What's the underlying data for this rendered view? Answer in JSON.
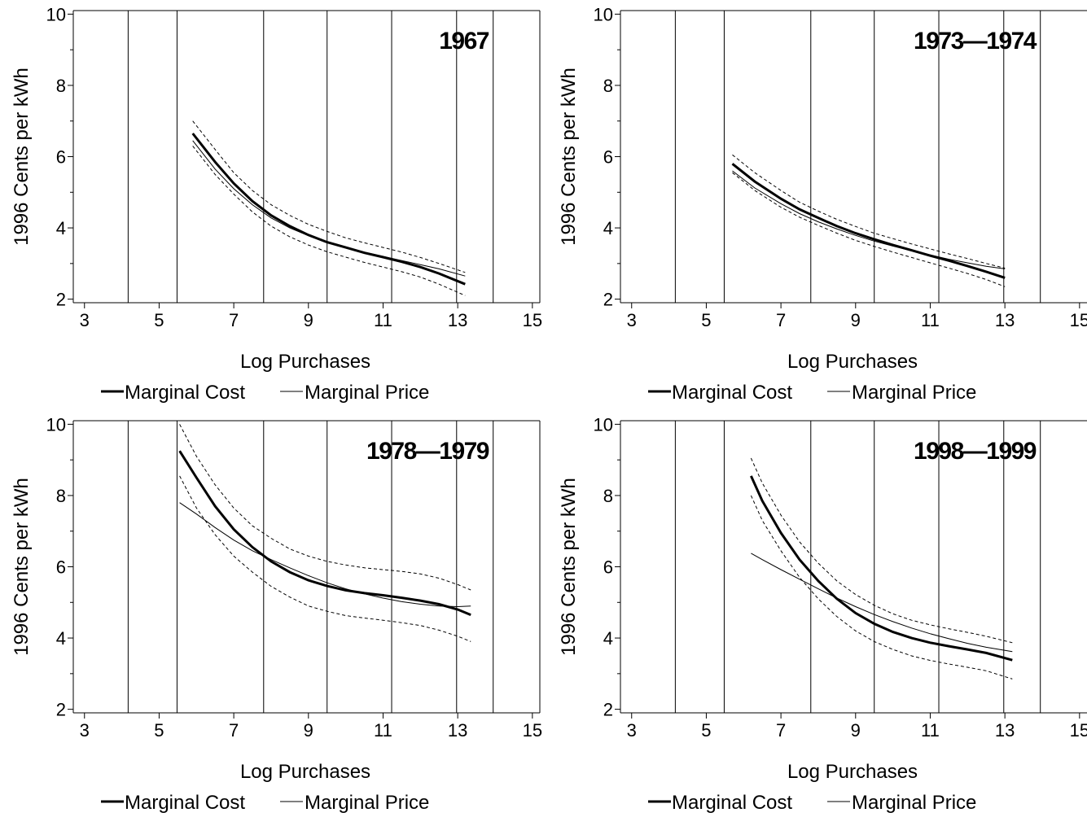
{
  "legend": {
    "cost_label": "Marginal Cost",
    "price_label": "Marginal Price"
  },
  "styles": {
    "line_color": "#000000",
    "background": "#ffffff"
  },
  "chart_data": [
    {
      "type": "line",
      "title": "1967",
      "xlabel": "Log Purchases",
      "ylabel": "1996 Cents per kWh",
      "xlim": [
        2.7,
        15.2
      ],
      "ylim": [
        1.9,
        10.1
      ],
      "xticks": [
        3,
        5,
        7,
        9,
        11,
        13,
        15
      ],
      "yticks": [
        2,
        4,
        6,
        8,
        10
      ],
      "yminor": [
        3,
        5,
        7,
        9
      ],
      "vlines": [
        4.17,
        5.48,
        7.8,
        9.5,
        11.23,
        12.97,
        13.95
      ],
      "grid": false,
      "legend_position": "bottom",
      "series": [
        {
          "name": "Marginal Cost",
          "role": "estimate",
          "x": [
            5.9,
            6.5,
            7.0,
            7.5,
            8.0,
            8.5,
            9.0,
            9.5,
            10.0,
            10.5,
            11.0,
            11.5,
            12.0,
            12.5,
            13.2
          ],
          "y": [
            6.65,
            5.85,
            5.25,
            4.75,
            4.35,
            4.05,
            3.8,
            3.6,
            3.45,
            3.3,
            3.18,
            3.05,
            2.9,
            2.72,
            2.42
          ]
        },
        {
          "name": "Marginal Cost upper",
          "role": "ci",
          "x": [
            5.9,
            6.5,
            7.0,
            7.5,
            8.0,
            8.5,
            9.0,
            9.5,
            10.0,
            10.5,
            11.0,
            11.5,
            12.0,
            12.5,
            13.2
          ],
          "y": [
            7.0,
            6.2,
            5.55,
            5.05,
            4.65,
            4.35,
            4.1,
            3.9,
            3.72,
            3.58,
            3.45,
            3.32,
            3.17,
            3.0,
            2.75
          ]
        },
        {
          "name": "Marginal Cost lower",
          "role": "ci",
          "x": [
            5.9,
            6.5,
            7.0,
            7.5,
            8.0,
            8.5,
            9.0,
            9.5,
            10.0,
            10.5,
            11.0,
            11.5,
            12.0,
            12.5,
            13.2
          ],
          "y": [
            6.3,
            5.5,
            4.95,
            4.45,
            4.05,
            3.75,
            3.52,
            3.33,
            3.18,
            3.03,
            2.9,
            2.77,
            2.62,
            2.42,
            2.1
          ]
        },
        {
          "name": "Marginal Price",
          "role": "price",
          "x": [
            5.9,
            6.5,
            7.0,
            7.5,
            8.0,
            8.5,
            9.0,
            9.5,
            10.0,
            10.5,
            11.0,
            11.5,
            12.0,
            12.5,
            13.2
          ],
          "y": [
            6.45,
            5.65,
            5.1,
            4.65,
            4.28,
            4.0,
            3.78,
            3.6,
            3.45,
            3.32,
            3.2,
            3.08,
            2.97,
            2.85,
            2.65
          ]
        }
      ]
    },
    {
      "type": "line",
      "title": "1973—1974",
      "xlabel": "Log Purchases",
      "ylabel": "1996 Cents per kWh",
      "xlim": [
        2.7,
        15.2
      ],
      "ylim": [
        1.9,
        10.1
      ],
      "xticks": [
        3,
        5,
        7,
        9,
        11,
        13,
        15
      ],
      "yticks": [
        2,
        4,
        6,
        8,
        10
      ],
      "yminor": [
        3,
        5,
        7,
        9
      ],
      "vlines": [
        4.17,
        5.48,
        7.8,
        9.5,
        11.23,
        12.97,
        13.95
      ],
      "grid": false,
      "legend_position": "bottom",
      "series": [
        {
          "name": "Marginal Cost",
          "role": "estimate",
          "x": [
            5.7,
            6.3,
            7.0,
            7.5,
            8.0,
            8.5,
            9.0,
            9.5,
            10.0,
            10.5,
            11.0,
            11.5,
            12.0,
            12.5,
            13.0
          ],
          "y": [
            5.8,
            5.3,
            4.82,
            4.52,
            4.28,
            4.05,
            3.85,
            3.68,
            3.52,
            3.37,
            3.22,
            3.08,
            2.93,
            2.77,
            2.6
          ]
        },
        {
          "name": "Marginal Cost upper",
          "role": "ci",
          "x": [
            5.7,
            6.3,
            7.0,
            7.5,
            8.0,
            8.5,
            9.0,
            9.5,
            10.0,
            10.5,
            11.0,
            11.5,
            12.0,
            12.5,
            13.0
          ],
          "y": [
            6.05,
            5.55,
            5.05,
            4.72,
            4.47,
            4.24,
            4.04,
            3.85,
            3.7,
            3.55,
            3.41,
            3.27,
            3.14,
            3.0,
            2.87
          ]
        },
        {
          "name": "Marginal Cost lower",
          "role": "ci",
          "x": [
            5.7,
            6.3,
            7.0,
            7.5,
            8.0,
            8.5,
            9.0,
            9.5,
            10.0,
            10.5,
            11.0,
            11.5,
            12.0,
            12.5,
            13.0
          ],
          "y": [
            5.55,
            5.05,
            4.58,
            4.3,
            4.07,
            3.85,
            3.65,
            3.48,
            3.32,
            3.17,
            3.02,
            2.87,
            2.72,
            2.55,
            2.35
          ]
        },
        {
          "name": "Marginal Price",
          "role": "price",
          "x": [
            5.7,
            6.3,
            7.0,
            7.5,
            8.0,
            8.5,
            9.0,
            9.5,
            10.0,
            10.5,
            11.0,
            11.5,
            12.0,
            12.5,
            13.0
          ],
          "y": [
            5.6,
            5.12,
            4.68,
            4.4,
            4.17,
            3.97,
            3.79,
            3.63,
            3.49,
            3.36,
            3.24,
            3.12,
            3.02,
            2.92,
            2.85
          ]
        }
      ]
    },
    {
      "type": "line",
      "title": "1978—1979",
      "xlabel": "Log Purchases",
      "ylabel": "1996 Cents per kWh",
      "xlim": [
        2.7,
        15.2
      ],
      "ylim": [
        1.9,
        10.1
      ],
      "xticks": [
        3,
        5,
        7,
        9,
        11,
        13,
        15
      ],
      "yticks": [
        2,
        4,
        6,
        8,
        10
      ],
      "yminor": [
        3,
        5,
        7,
        9
      ],
      "vlines": [
        4.17,
        5.48,
        7.8,
        9.5,
        11.23,
        12.97,
        13.95
      ],
      "grid": false,
      "legend_position": "bottom",
      "series": [
        {
          "name": "Marginal Cost",
          "role": "estimate",
          "x": [
            5.55,
            6.0,
            6.5,
            7.0,
            7.5,
            8.0,
            8.5,
            9.0,
            9.5,
            10.0,
            10.5,
            11.0,
            11.5,
            12.0,
            12.5,
            13.0,
            13.35
          ],
          "y": [
            9.25,
            8.5,
            7.7,
            7.05,
            6.55,
            6.15,
            5.85,
            5.62,
            5.46,
            5.34,
            5.26,
            5.2,
            5.13,
            5.05,
            4.95,
            4.8,
            4.65
          ]
        },
        {
          "name": "Marginal Cost upper",
          "role": "ci",
          "x": [
            5.55,
            6.0,
            6.5,
            7.0,
            7.5,
            8.0,
            8.5,
            9.0,
            9.5,
            10.0,
            10.5,
            11.0,
            11.5,
            12.0,
            12.5,
            13.0,
            13.35
          ],
          "y": [
            10.0,
            9.1,
            8.3,
            7.65,
            7.15,
            6.8,
            6.5,
            6.3,
            6.15,
            6.05,
            5.97,
            5.92,
            5.87,
            5.8,
            5.68,
            5.5,
            5.35
          ]
        },
        {
          "name": "Marginal Cost lower",
          "role": "ci",
          "x": [
            5.55,
            6.0,
            6.5,
            7.0,
            7.5,
            8.0,
            8.5,
            9.0,
            9.5,
            10.0,
            10.5,
            11.0,
            11.5,
            12.0,
            12.5,
            13.0,
            13.35
          ],
          "y": [
            8.55,
            7.65,
            6.9,
            6.3,
            5.85,
            5.45,
            5.15,
            4.9,
            4.75,
            4.63,
            4.56,
            4.5,
            4.43,
            4.35,
            4.22,
            4.05,
            3.9
          ]
        },
        {
          "name": "Marginal Price",
          "role": "price",
          "x": [
            5.55,
            6.0,
            6.5,
            7.0,
            7.5,
            8.0,
            8.5,
            9.0,
            9.5,
            10.0,
            10.5,
            11.0,
            11.5,
            12.0,
            12.5,
            13.0,
            13.35
          ],
          "y": [
            7.8,
            7.48,
            7.1,
            6.75,
            6.45,
            6.2,
            5.97,
            5.75,
            5.55,
            5.38,
            5.24,
            5.12,
            5.02,
            4.95,
            4.9,
            4.88,
            4.9
          ]
        }
      ]
    },
    {
      "type": "line",
      "title": "1998—1999",
      "xlabel": "Log Purchases",
      "ylabel": "1996 Cents per kWh",
      "xlim": [
        2.7,
        15.2
      ],
      "ylim": [
        1.9,
        10.1
      ],
      "xticks": [
        3,
        5,
        7,
        9,
        11,
        13,
        15
      ],
      "yticks": [
        2,
        4,
        6,
        8,
        10
      ],
      "yminor": [
        3,
        5,
        7,
        9
      ],
      "vlines": [
        4.17,
        5.48,
        7.8,
        9.5,
        11.23,
        12.97,
        13.95
      ],
      "grid": false,
      "legend_position": "bottom",
      "series": [
        {
          "name": "Marginal Cost",
          "role": "estimate",
          "x": [
            6.2,
            6.5,
            7.0,
            7.5,
            8.0,
            8.5,
            9.0,
            9.5,
            10.0,
            10.5,
            11.0,
            11.5,
            12.0,
            12.5,
            13.2
          ],
          "y": [
            8.55,
            7.85,
            6.95,
            6.2,
            5.6,
            5.1,
            4.7,
            4.4,
            4.17,
            4.0,
            3.87,
            3.77,
            3.68,
            3.58,
            3.38
          ]
        },
        {
          "name": "Marginal Cost upper",
          "role": "ci",
          "x": [
            6.2,
            6.5,
            7.0,
            7.5,
            8.0,
            8.5,
            9.0,
            9.5,
            10.0,
            10.5,
            11.0,
            11.5,
            12.0,
            12.5,
            13.2
          ],
          "y": [
            9.05,
            8.35,
            7.45,
            6.7,
            6.1,
            5.6,
            5.22,
            4.92,
            4.68,
            4.5,
            4.37,
            4.26,
            4.16,
            4.05,
            3.87
          ]
        },
        {
          "name": "Marginal Cost lower",
          "role": "ci",
          "x": [
            6.2,
            6.5,
            7.0,
            7.5,
            8.0,
            8.5,
            9.0,
            9.5,
            10.0,
            10.5,
            11.0,
            11.5,
            12.0,
            12.5,
            13.2
          ],
          "y": [
            8.0,
            7.3,
            6.45,
            5.7,
            5.1,
            4.6,
            4.2,
            3.9,
            3.68,
            3.5,
            3.37,
            3.27,
            3.18,
            3.08,
            2.85
          ]
        },
        {
          "name": "Marginal Price",
          "role": "price",
          "x": [
            6.2,
            6.5,
            7.0,
            7.5,
            8.0,
            8.5,
            9.0,
            9.5,
            10.0,
            10.5,
            11.0,
            11.5,
            12.0,
            12.5,
            13.2
          ],
          "y": [
            6.38,
            6.2,
            5.92,
            5.65,
            5.38,
            5.12,
            4.88,
            4.66,
            4.46,
            4.28,
            4.12,
            3.98,
            3.85,
            3.74,
            3.62
          ]
        }
      ]
    }
  ]
}
